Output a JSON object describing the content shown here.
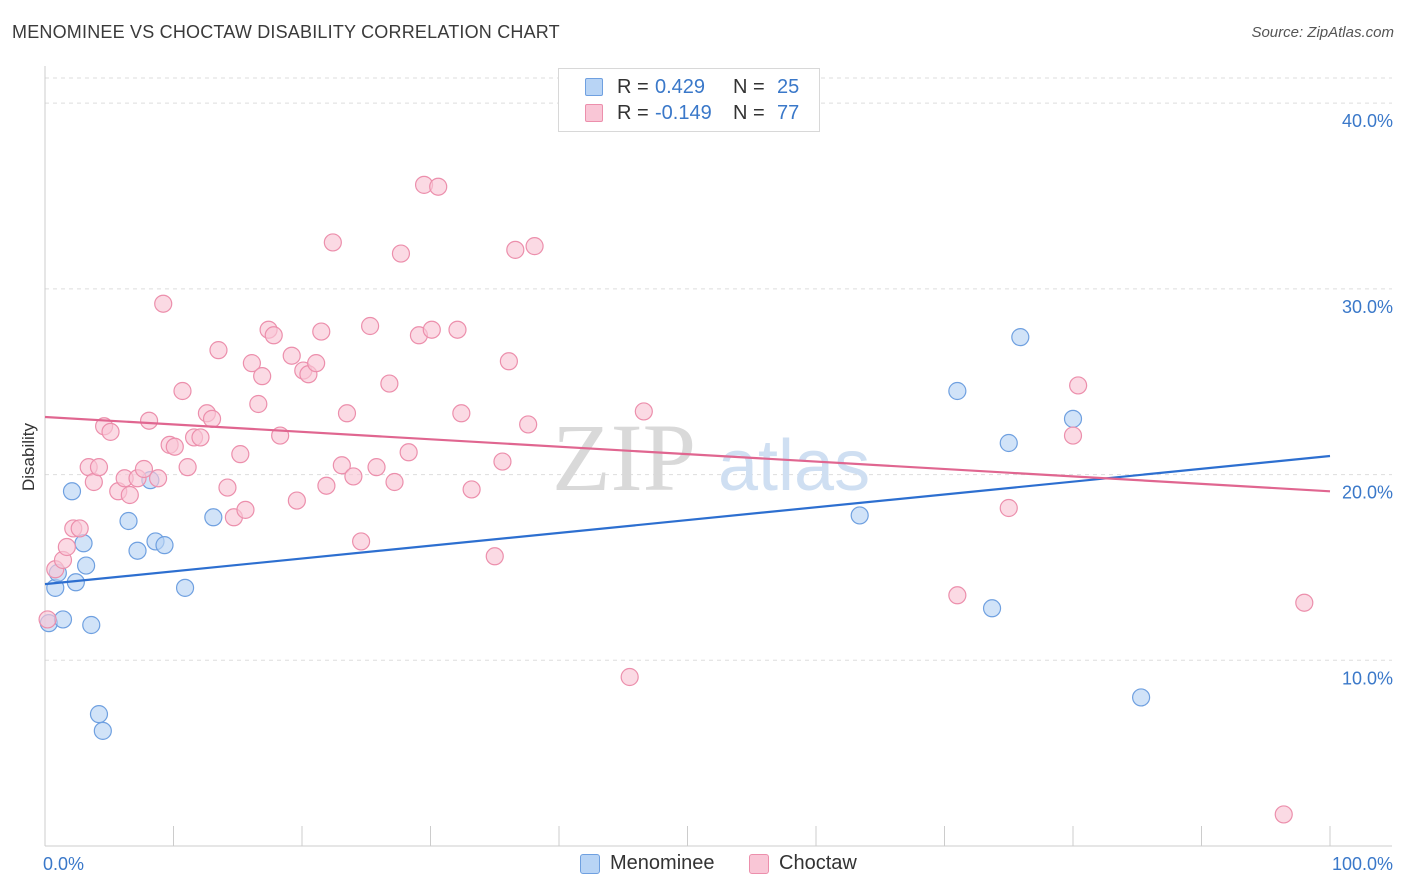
{
  "title": "MENOMINEE VS CHOCTAW DISABILITY CORRELATION CHART",
  "source": "Source: ZipAtlas.com",
  "watermark": {
    "zip": "ZIP",
    "atlas": "atlas"
  },
  "legend": {
    "rows": [
      {
        "r_label": "R =",
        "r_value": "0.429",
        "n_label": "N =",
        "n_value": "25"
      },
      {
        "r_label": "R =",
        "r_value": "-0.149",
        "n_label": "N =",
        "n_value": "77"
      }
    ]
  },
  "bottom_legend": [
    "Menominee",
    "Choctaw"
  ],
  "colors": {
    "menominee_fill": "#b8d4f5",
    "menominee_stroke": "#6fa0e0",
    "menominee_line": "#2d6fd0",
    "choctaw_fill": "#f9c6d6",
    "choctaw_stroke": "#ec8fac",
    "choctaw_line": "#e06690",
    "tick_label": "#3a78c9",
    "grid": "#dddddd"
  },
  "chart_data": {
    "type": "scatter",
    "title": "MENOMINEE VS CHOCTAW DISABILITY CORRELATION CHART",
    "xlabel": "",
    "ylabel": "Disability",
    "xlim": [
      0,
      100
    ],
    "ylim": [
      0,
      42
    ],
    "x_tick_labels": [
      "0.0%",
      "100.0%"
    ],
    "y_ticks": [
      10,
      20,
      30,
      40
    ],
    "y_tick_labels": [
      "10.0%",
      "20.0%",
      "30.0%",
      "40.0%"
    ],
    "legend_position": "top-center",
    "series": [
      {
        "name": "Menominee",
        "r": 0.429,
        "n": 25,
        "trend": {
          "x": [
            0,
            100
          ],
          "y": [
            14.1,
            21.0
          ]
        },
        "points": [
          [
            0.3,
            12.0
          ],
          [
            0.8,
            13.9
          ],
          [
            1.0,
            14.7
          ],
          [
            1.4,
            12.2
          ],
          [
            2.1,
            19.1
          ],
          [
            2.4,
            14.2
          ],
          [
            3.0,
            16.3
          ],
          [
            3.2,
            15.1
          ],
          [
            3.6,
            11.9
          ],
          [
            4.2,
            7.1
          ],
          [
            4.5,
            6.2
          ],
          [
            6.5,
            17.5
          ],
          [
            7.2,
            15.9
          ],
          [
            8.2,
            19.7
          ],
          [
            8.6,
            16.4
          ],
          [
            9.3,
            16.2
          ],
          [
            10.9,
            13.9
          ],
          [
            13.1,
            17.7
          ],
          [
            63.4,
            17.8
          ],
          [
            71.0,
            24.5
          ],
          [
            73.7,
            12.8
          ],
          [
            75.0,
            21.7
          ],
          [
            75.9,
            27.4
          ],
          [
            80.0,
            23.0
          ],
          [
            85.3,
            8.0
          ]
        ]
      },
      {
        "name": "Choctaw",
        "r": -0.149,
        "n": 77,
        "trend": {
          "x": [
            0,
            100
          ],
          "y": [
            23.1,
            19.1
          ]
        },
        "points": [
          [
            0.2,
            12.2
          ],
          [
            0.8,
            14.9
          ],
          [
            1.4,
            15.4
          ],
          [
            1.7,
            16.1
          ],
          [
            2.2,
            17.1
          ],
          [
            2.7,
            17.1
          ],
          [
            3.4,
            20.4
          ],
          [
            3.8,
            19.6
          ],
          [
            4.2,
            20.4
          ],
          [
            4.6,
            22.6
          ],
          [
            5.1,
            22.3
          ],
          [
            5.7,
            19.1
          ],
          [
            6.2,
            19.8
          ],
          [
            6.6,
            18.9
          ],
          [
            7.2,
            19.8
          ],
          [
            7.7,
            20.3
          ],
          [
            8.1,
            22.9
          ],
          [
            8.8,
            19.8
          ],
          [
            9.2,
            29.2
          ],
          [
            9.7,
            21.6
          ],
          [
            10.1,
            21.5
          ],
          [
            10.7,
            24.5
          ],
          [
            11.1,
            20.4
          ],
          [
            11.6,
            22.0
          ],
          [
            12.1,
            22.0
          ],
          [
            12.6,
            23.3
          ],
          [
            13.0,
            23.0
          ],
          [
            13.5,
            26.7
          ],
          [
            14.2,
            19.3
          ],
          [
            14.7,
            17.7
          ],
          [
            15.2,
            21.1
          ],
          [
            15.6,
            18.1
          ],
          [
            16.1,
            26.0
          ],
          [
            16.6,
            23.8
          ],
          [
            16.9,
            25.3
          ],
          [
            17.4,
            27.8
          ],
          [
            17.8,
            27.5
          ],
          [
            18.3,
            22.1
          ],
          [
            19.2,
            26.4
          ],
          [
            19.6,
            18.6
          ],
          [
            20.1,
            25.6
          ],
          [
            20.5,
            25.4
          ],
          [
            21.1,
            26.0
          ],
          [
            21.5,
            27.7
          ],
          [
            21.9,
            19.4
          ],
          [
            22.4,
            32.5
          ],
          [
            23.1,
            20.5
          ],
          [
            23.5,
            23.3
          ],
          [
            24.0,
            19.9
          ],
          [
            24.6,
            16.4
          ],
          [
            25.3,
            28.0
          ],
          [
            25.8,
            20.4
          ],
          [
            26.8,
            24.9
          ],
          [
            27.2,
            19.6
          ],
          [
            27.7,
            31.9
          ],
          [
            28.3,
            21.2
          ],
          [
            29.1,
            27.5
          ],
          [
            29.5,
            35.6
          ],
          [
            30.1,
            27.8
          ],
          [
            30.6,
            35.5
          ],
          [
            32.1,
            27.8
          ],
          [
            32.4,
            23.3
          ],
          [
            33.2,
            19.2
          ],
          [
            35.0,
            15.6
          ],
          [
            35.6,
            20.7
          ],
          [
            36.1,
            26.1
          ],
          [
            36.6,
            32.1
          ],
          [
            37.6,
            22.7
          ],
          [
            38.1,
            32.3
          ],
          [
            45.5,
            9.1
          ],
          [
            46.6,
            23.4
          ],
          [
            71.0,
            13.5
          ],
          [
            75.0,
            18.2
          ],
          [
            80.0,
            22.1
          ],
          [
            80.4,
            24.8
          ],
          [
            96.4,
            1.7
          ],
          [
            98.0,
            13.1
          ]
        ]
      }
    ]
  }
}
